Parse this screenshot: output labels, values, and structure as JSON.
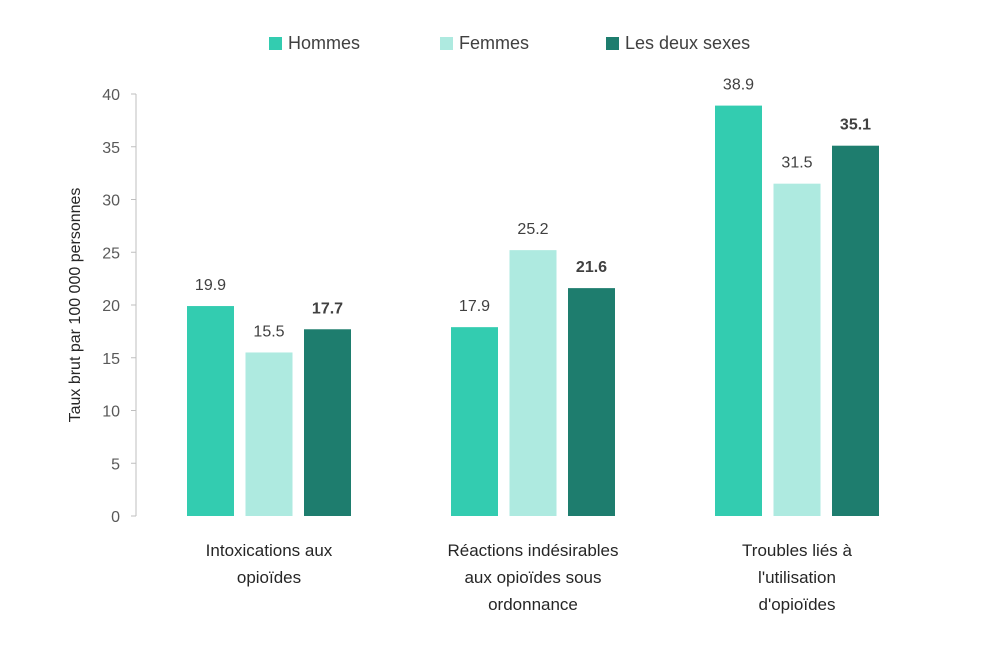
{
  "chart_data": {
    "type": "bar",
    "title": "",
    "xlabel": "",
    "ylabel": "Taux brut par 100 000 personnes",
    "ylim": [
      0,
      40
    ],
    "yticks": [
      0,
      5,
      10,
      15,
      20,
      25,
      30,
      35,
      40
    ],
    "grid": false,
    "legend_position": "top",
    "categories": [
      [
        "Intoxications aux",
        "opioïdes"
      ],
      [
        "Réactions indésirables",
        "aux opioïdes sous",
        "ordonnance"
      ],
      [
        "Troubles liés à",
        "l'utilisation",
        "d'opioïdes"
      ]
    ],
    "series": [
      {
        "name": "Hommes",
        "color": "#33CCB0",
        "bold_labels": false,
        "values": [
          19.9,
          17.9,
          38.9
        ]
      },
      {
        "name": "Femmes",
        "color": "#AEEAE0",
        "bold_labels": false,
        "values": [
          15.5,
          25.2,
          31.5
        ]
      },
      {
        "name": "Les deux sexes",
        "color": "#1E7D6E",
        "bold_labels": true,
        "values": [
          17.7,
          21.6,
          35.1
        ]
      }
    ]
  }
}
